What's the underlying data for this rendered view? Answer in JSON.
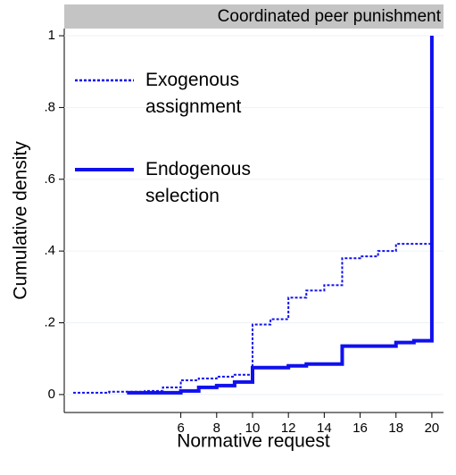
{
  "chart_data": {
    "type": "step",
    "title": "Coordinated peer punishment",
    "x_label": "Normative request",
    "y_label": "Cumulative density",
    "xlim": [
      -0.5,
      20.65
    ],
    "ylim": [
      -0.05,
      1.02
    ],
    "xticks": [
      6,
      8,
      10,
      12,
      14,
      16,
      18,
      20
    ],
    "yticks": [
      0,
      {
        "value": 0.2,
        "label": ".2"
      },
      {
        "value": 0.4,
        "label": ".4"
      },
      {
        "value": 0.6,
        "label": ".6"
      },
      {
        "value": 0.8,
        "label": ".8"
      },
      1
    ],
    "grid": true,
    "series": [
      {
        "name": "Exogenous assignment",
        "color": "#1010ee",
        "style": "dotted",
        "x": [
          0,
          2,
          4,
          5,
          6,
          7,
          8,
          9,
          10,
          11,
          12,
          13,
          14,
          15,
          16,
          17,
          18,
          20
        ],
        "values": [
          0.005,
          0.008,
          0.01,
          0.02,
          0.04,
          0.045,
          0.05,
          0.055,
          0.195,
          0.21,
          0.27,
          0.29,
          0.305,
          0.38,
          0.385,
          0.4,
          0.42,
          0.42
        ]
      },
      {
        "name": "Endogenous selection",
        "color": "#1010ee",
        "style": "solid",
        "x": [
          3,
          6,
          7,
          8,
          9,
          10,
          12,
          13,
          15,
          18,
          19,
          20
        ],
        "values": [
          0.005,
          0.01,
          0.02,
          0.025,
          0.035,
          0.075,
          0.08,
          0.085,
          0.135,
          0.145,
          0.15,
          1
        ]
      }
    ]
  }
}
